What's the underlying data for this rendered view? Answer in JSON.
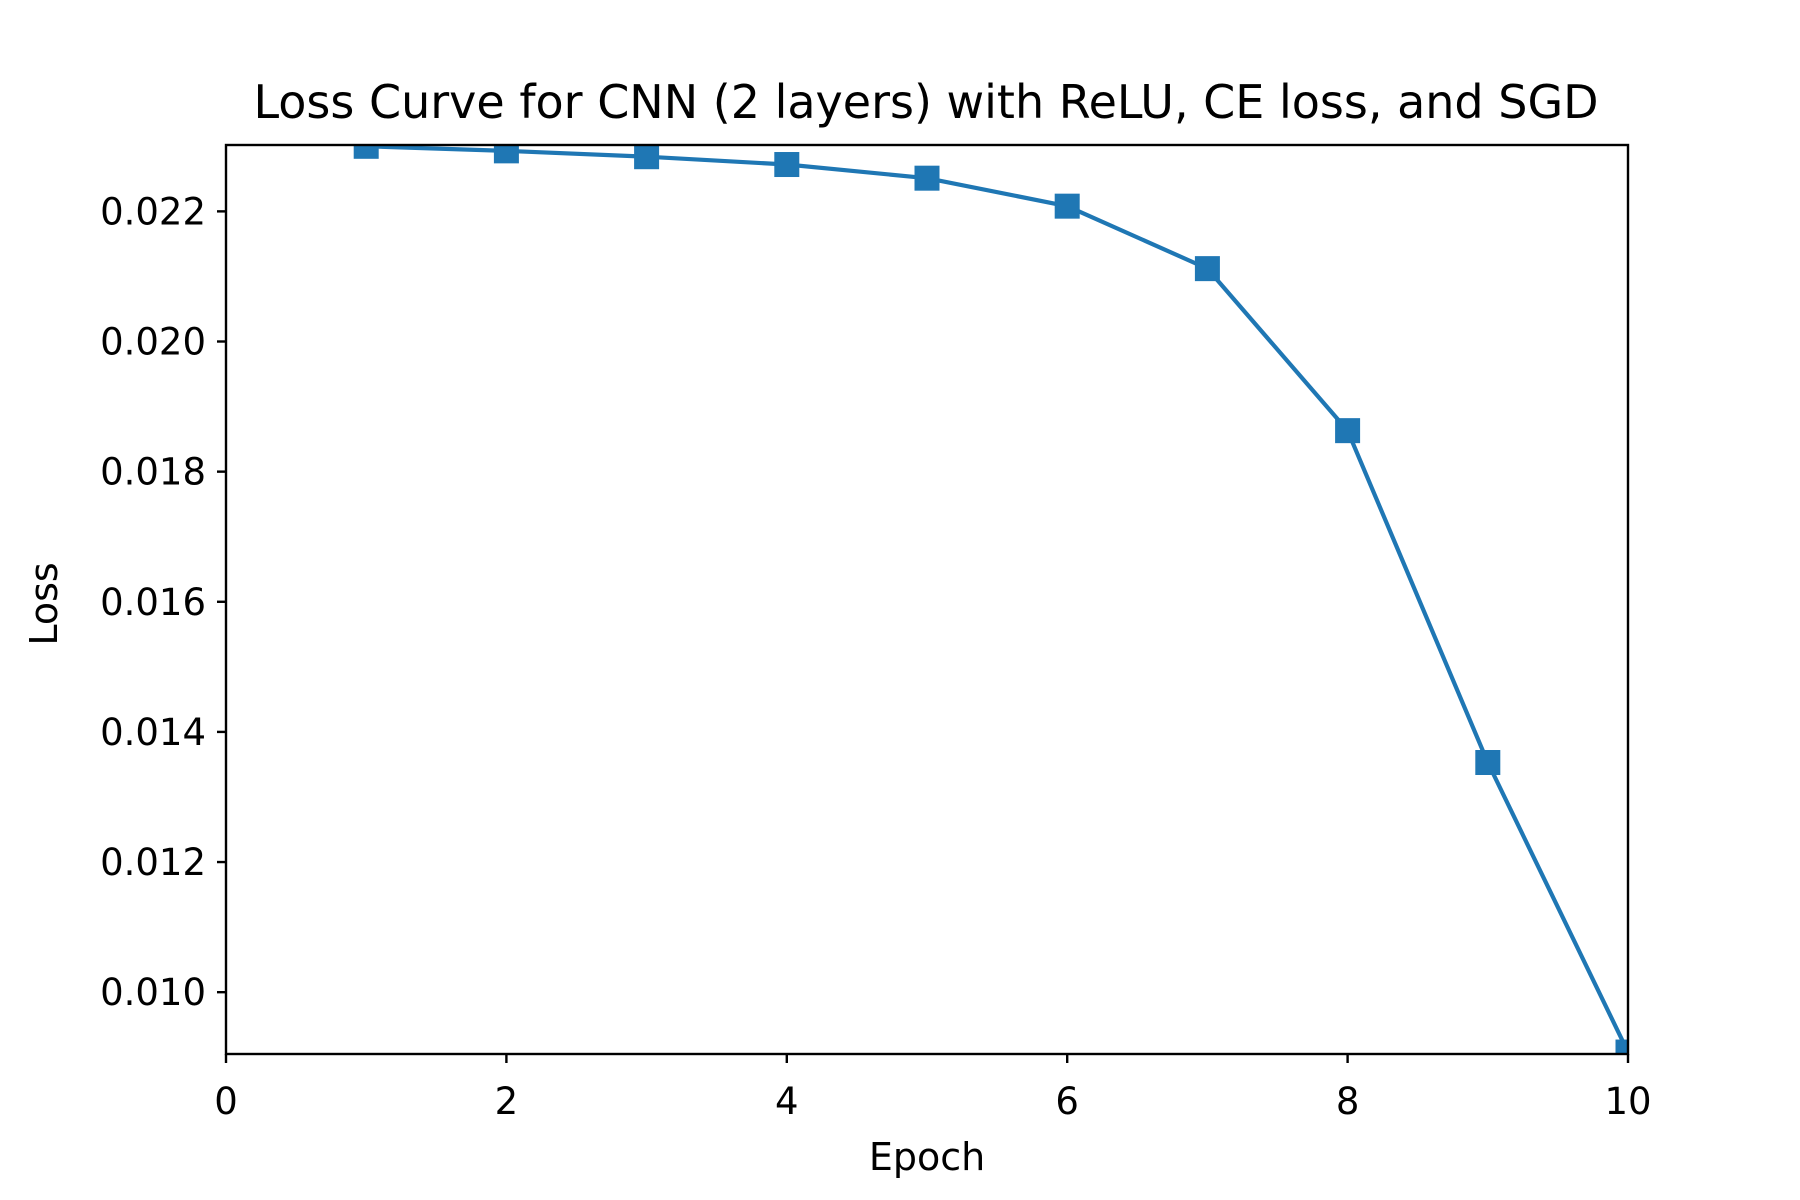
{
  "chart_data": {
    "type": "line",
    "title": "Loss Curve for CNN (2 layers) with ReLU, CE loss, and SGD",
    "xlabel": "Epoch",
    "ylabel": "Loss",
    "xlim": [
      0,
      10
    ],
    "ylim": [
      0.00905,
      0.02302
    ],
    "x_ticks": [
      0,
      2,
      4,
      6,
      8,
      10
    ],
    "y_ticks": [
      0.01,
      0.012,
      0.014,
      0.016,
      0.018,
      0.02,
      0.022
    ],
    "x_tick_labels": [
      "0",
      "2",
      "4",
      "6",
      "8",
      "10"
    ],
    "y_tick_labels": [
      "0.010",
      "0.012",
      "0.014",
      "0.016",
      "0.018",
      "0.020",
      "0.022"
    ],
    "grid": false,
    "legend": "none",
    "series": [
      {
        "color": "#1f77b4",
        "marker": "square",
        "x": [
          1,
          2,
          3,
          4,
          5,
          6,
          7,
          8,
          9,
          10
        ],
        "values": [
          0.023,
          0.02293,
          0.02284,
          0.02272,
          0.02251,
          0.02208,
          0.02112,
          0.01863,
          0.01353,
          0.00908
        ]
      }
    ]
  }
}
